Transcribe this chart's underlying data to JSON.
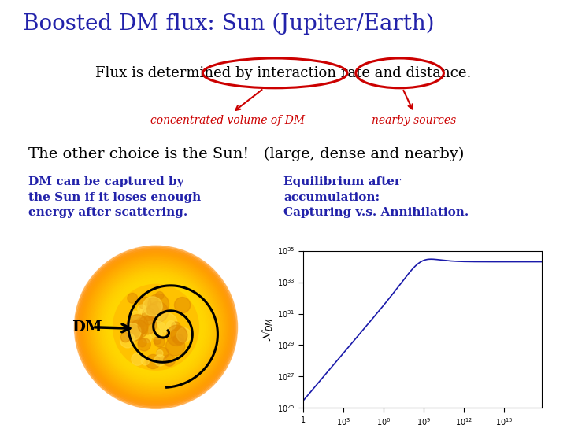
{
  "title": "Boosted DM flux: Sun (Jupiter/Earth)",
  "title_color": "#2222aa",
  "title_fontsize": 20,
  "subtitle": "Flux is determined by interaction rate and distance.",
  "subtitle_fontsize": 13,
  "label1": "concentrated volume of DM",
  "label2": "nearby sources",
  "label_color": "#cc0000",
  "label_fontsize": 10,
  "text1": "The other choice is the Sun!   (large, dense and nearby)",
  "text1_fontsize": 14,
  "dm_text": "DM can be captured by\nthe Sun if it loses enough\nenergy after scattering.",
  "dm_text_color": "#2222aa",
  "dm_text_fontsize": 11,
  "eq_text": "Equilibrium after\naccumulation:\nCapturing v.s. Annihilation.",
  "eq_text_color": "#2222aa",
  "eq_text_fontsize": 11,
  "dm_label": "DM",
  "bg_color": "#ffffff",
  "red_color": "#cc0000"
}
